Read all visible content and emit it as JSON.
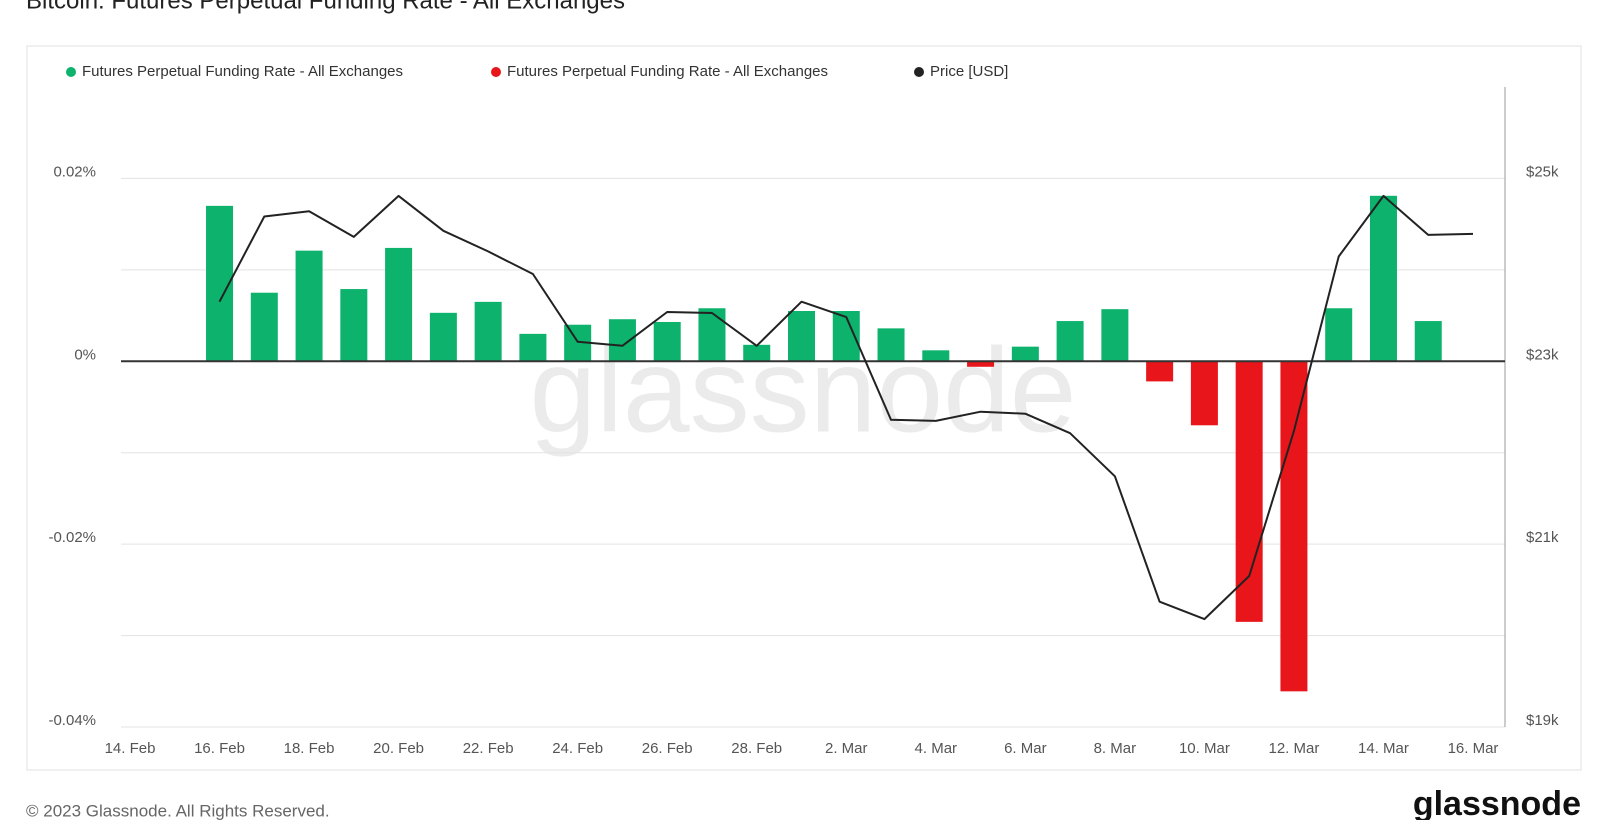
{
  "chart_data": {
    "type": "bar_line",
    "title": "Bitcoin: Futures Perpetual Funding Rate - All Exchanges",
    "categories": [
      "14. Feb",
      null,
      "16. Feb",
      null,
      "18. Feb",
      null,
      "20. Feb",
      null,
      "22. Feb",
      null,
      "24. Feb",
      null,
      "26. Feb",
      null,
      "28. Feb",
      null,
      "2. Mar",
      null,
      "4. Mar",
      null,
      "6. Mar",
      null,
      "8. Mar",
      null,
      "10. Mar",
      null,
      "12. Mar",
      null,
      "14. Mar",
      null,
      "16. Mar"
    ],
    "ylim": [
      -0.04,
      0.03
    ],
    "yticks": [
      {
        "value": -0.04,
        "label": "-0.04%"
      },
      {
        "value": -0.02,
        "label": "-0.02%"
      },
      {
        "value": 0,
        "label": "0%"
      },
      {
        "value": 0.02,
        "label": "0.02%"
      }
    ],
    "minor_yticks": [
      -0.03,
      -0.01,
      0.01
    ],
    "y2lim": [
      19000,
      26000
    ],
    "y2ticks": [
      {
        "value": 19000,
        "label": "$19k"
      },
      {
        "value": 21000,
        "label": "$21k"
      },
      {
        "value": 23000,
        "label": "$23k"
      },
      {
        "value": 25000,
        "label": "$25k"
      }
    ],
    "grid": true,
    "series": [
      {
        "name": "Futures Perpetual Funding Rate - All Exchanges",
        "color": "#0db26c",
        "type": "bar",
        "values": [
          null,
          null,
          0.017,
          0.0075,
          0.0121,
          0.0079,
          0.0124,
          0.0053,
          0.0065,
          0.003,
          0.004,
          0.0046,
          0.0043,
          0.0058,
          0.0018,
          0.0055,
          0.0055,
          0.0036,
          0.0012,
          null,
          0.0016,
          0.0044,
          0.0057,
          null,
          null,
          null,
          null,
          0.0058,
          0.0181,
          0.0044,
          null
        ]
      },
      {
        "name": "Futures Perpetual Funding Rate - All Exchanges",
        "color": "#e8161b",
        "type": "bar",
        "values": [
          null,
          null,
          null,
          null,
          null,
          null,
          null,
          null,
          null,
          null,
          null,
          null,
          null,
          null,
          null,
          null,
          null,
          null,
          null,
          -0.0006,
          null,
          null,
          null,
          -0.0022,
          -0.007,
          -0.0285,
          -0.0361,
          null,
          null,
          null,
          null
        ]
      },
      {
        "name": "Price [USD]",
        "color": "#222222",
        "type": "line",
        "axis": "y2",
        "values": [
          null,
          null,
          23652,
          24584,
          24640,
          24360,
          24809,
          24427,
          24202,
          23955,
          23213,
          23169,
          23539,
          23528,
          23169,
          23652,
          23483,
          22360,
          22348,
          22449,
          22427,
          22213,
          21742,
          20371,
          20180,
          20652,
          22236,
          24146,
          24809,
          24382,
          24393
        ]
      }
    ]
  },
  "footer": {
    "copyright": "© 2023 Glassnode. All Rights Reserved.",
    "brand": "glassnode"
  }
}
